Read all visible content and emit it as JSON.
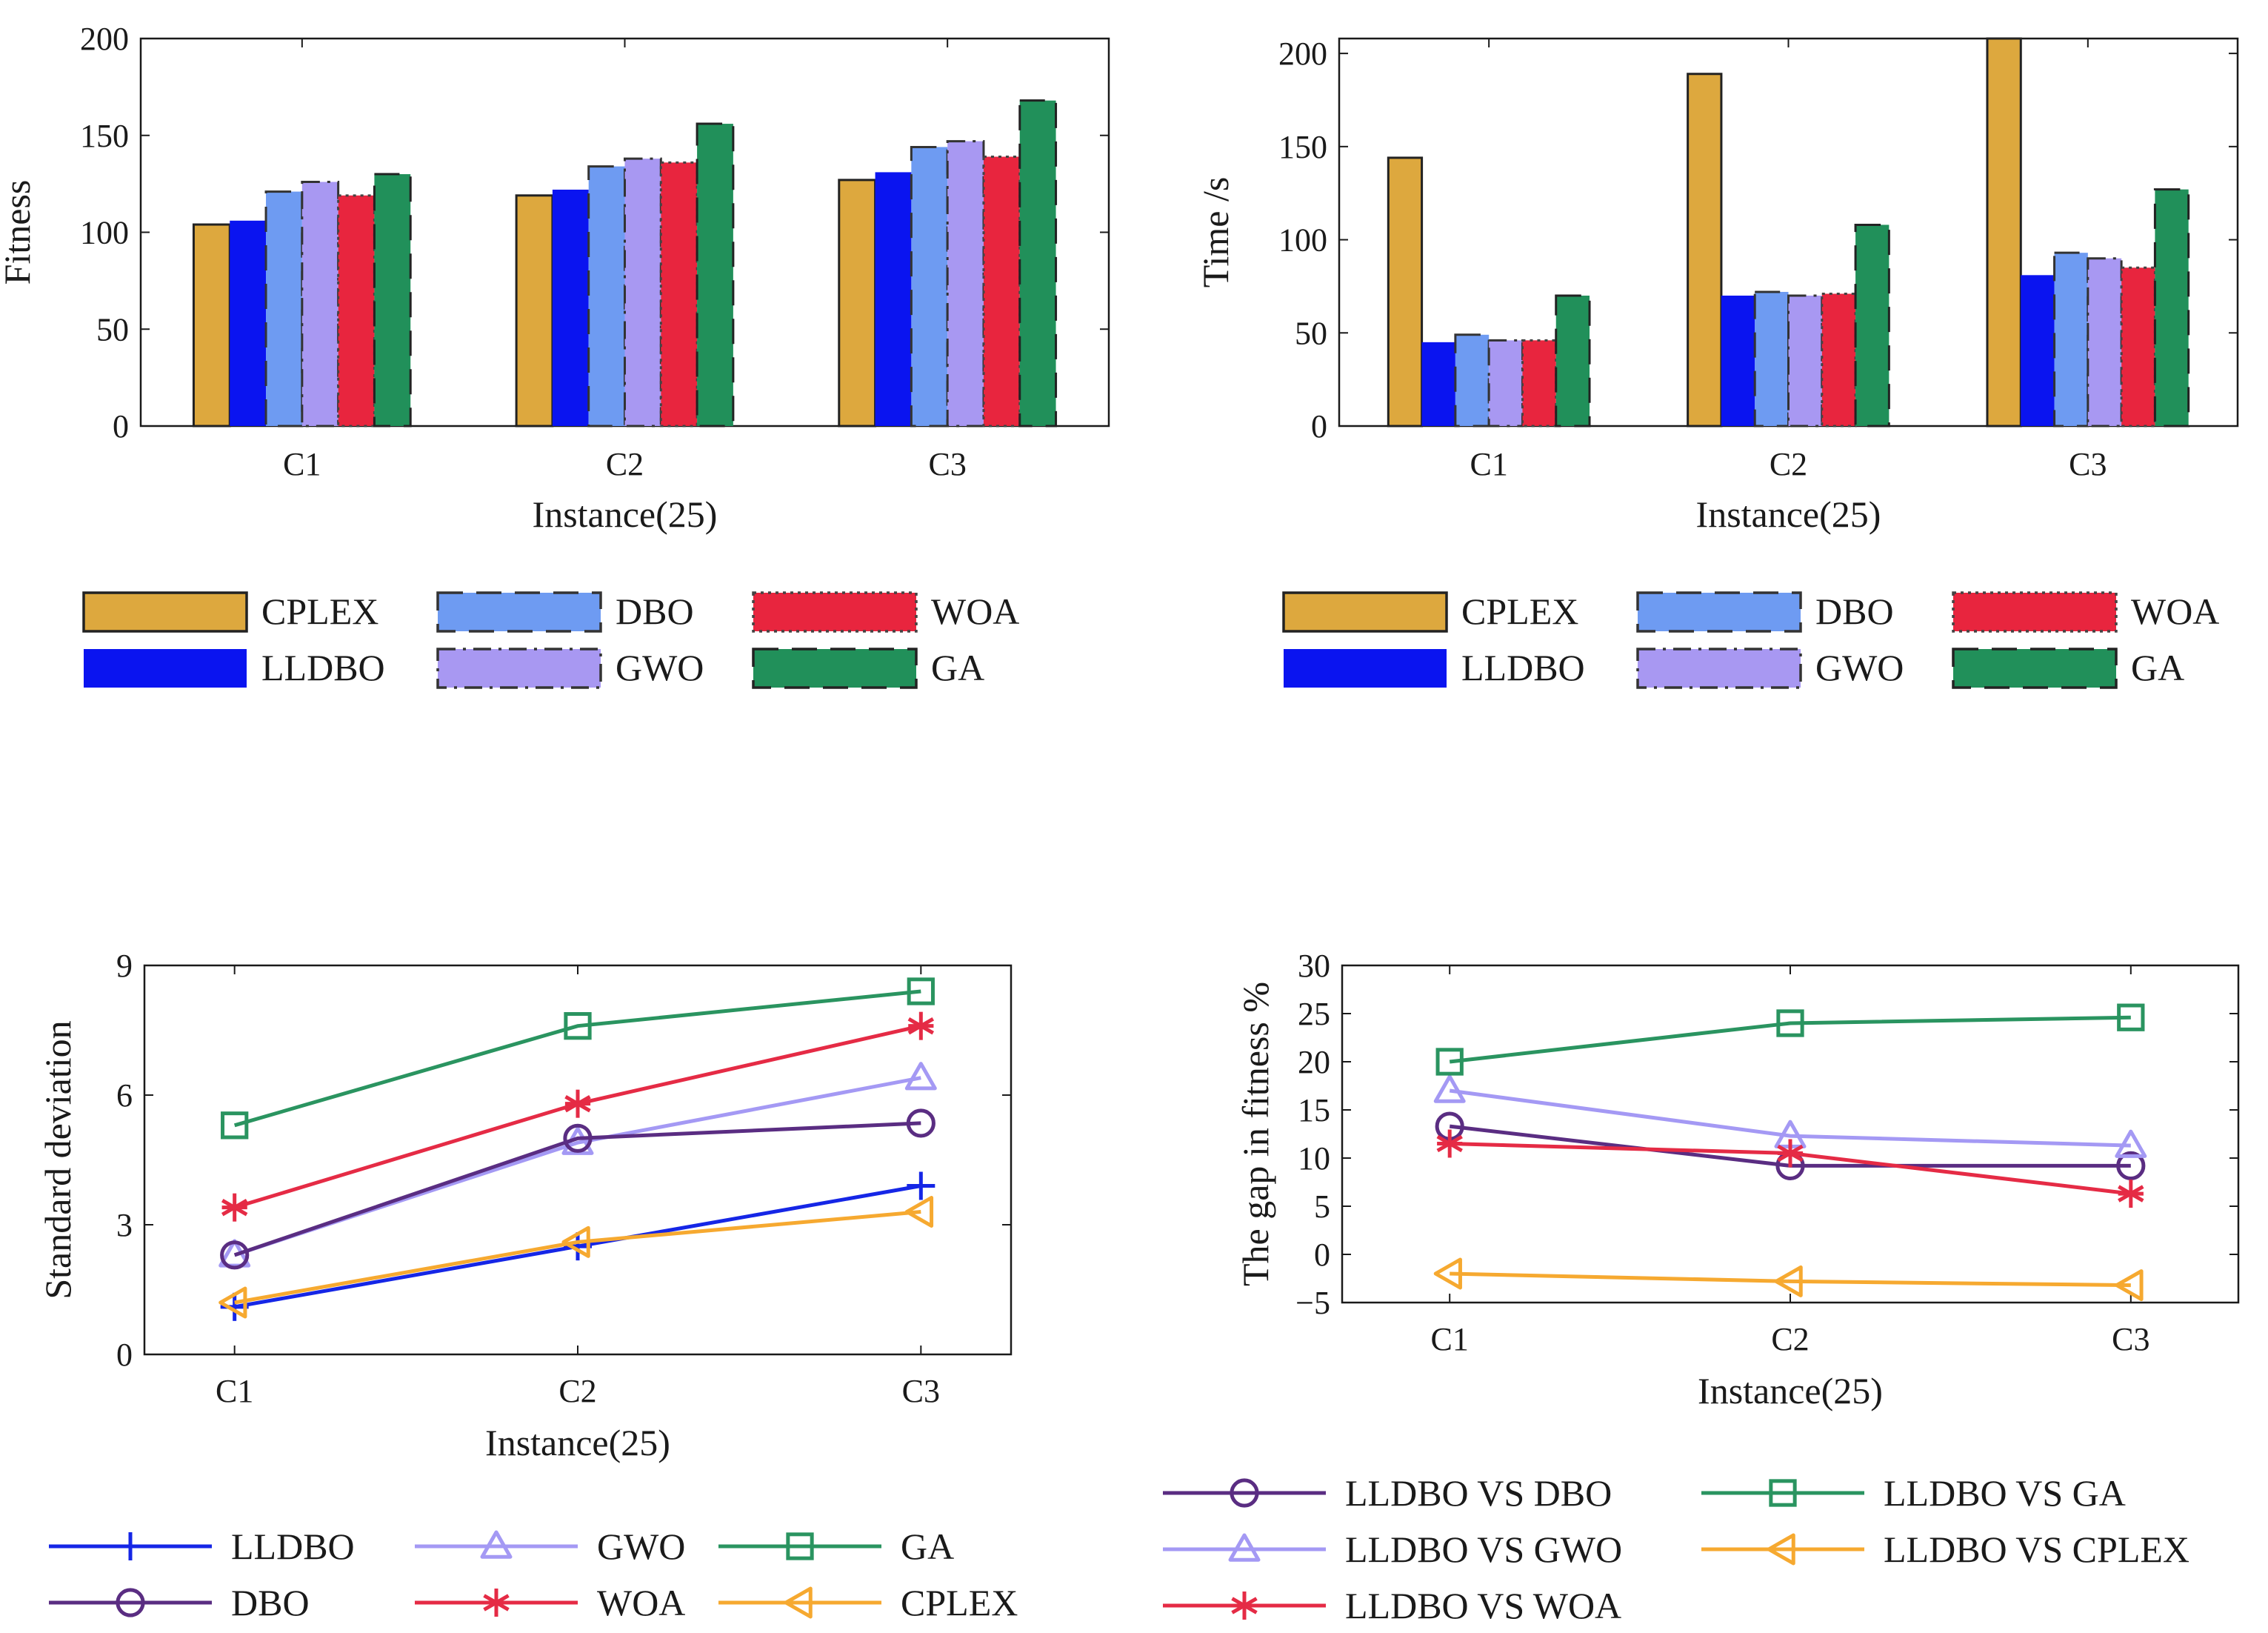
{
  "colors": {
    "CPLEX": "#DDA83E",
    "LLDBO": "#0A14F0",
    "DBO": "#6E9BF2",
    "GWO": "#A898F2",
    "WOA": "#E8253E",
    "GA": "#21905A",
    "line_LLDBO": "#1526E6",
    "line_DBO": "#5A2D82",
    "line_GWO": "#A499F4",
    "line_WOA": "#E52B45",
    "line_GA": "#2A9460",
    "line_CPLEX": "#F6A930"
  },
  "chart_data": [
    {
      "type": "bar",
      "id": "fitness",
      "ylabel": "Fitness",
      "xlabel": "Instance(25)",
      "ylim": [
        0,
        200
      ],
      "yticks": [
        "0",
        "50",
        "100",
        "150",
        "200"
      ],
      "categories": [
        "C1",
        "C2",
        "C3"
      ],
      "series": [
        {
          "name": "CPLEX",
          "values": [
            104,
            119,
            127
          ]
        },
        {
          "name": "LLDBO",
          "values": [
            106,
            122,
            131
          ]
        },
        {
          "name": "DBO",
          "values": [
            121,
            134,
            144
          ]
        },
        {
          "name": "GWO",
          "values": [
            126,
            138,
            147
          ]
        },
        {
          "name": "WOA",
          "values": [
            119,
            136,
            139
          ]
        },
        {
          "name": "GA",
          "values": [
            130,
            156,
            168
          ]
        }
      ],
      "legend": [
        "CPLEX",
        "DBO",
        "WOA",
        "LLDBO",
        "GWO",
        "GA"
      ]
    },
    {
      "type": "bar",
      "id": "time",
      "ylabel": "Time /s",
      "xlabel": "Instance(25)",
      "ylim": [
        0,
        208
      ],
      "yticks": [
        "0",
        "50",
        "100",
        "150",
        "200"
      ],
      "categories": [
        "C1",
        "C2",
        "C3"
      ],
      "series": [
        {
          "name": "CPLEX",
          "values": [
            144,
            189,
            208
          ]
        },
        {
          "name": "LLDBO",
          "values": [
            45,
            70,
            81
          ]
        },
        {
          "name": "DBO",
          "values": [
            49,
            72,
            93
          ]
        },
        {
          "name": "GWO",
          "values": [
            46,
            70,
            90
          ]
        },
        {
          "name": "WOA",
          "values": [
            46,
            71,
            85
          ]
        },
        {
          "name": "GA",
          "values": [
            70,
            108,
            127
          ]
        }
      ],
      "legend": [
        "CPLEX",
        "DBO",
        "WOA",
        "LLDBO",
        "GWO",
        "GA"
      ]
    },
    {
      "type": "line",
      "id": "stddev",
      "ylabel": "Standard deviation",
      "xlabel": "Instance(25)",
      "ylim": [
        0,
        9
      ],
      "yticks": [
        "0",
        "3",
        "6",
        "9"
      ],
      "categories": [
        "C1",
        "C2",
        "C3"
      ],
      "series": [
        {
          "name": "LLDBO",
          "marker": "plus",
          "values": [
            1.1,
            2.5,
            3.9
          ]
        },
        {
          "name": "GWO",
          "marker": "triangle-up",
          "values": [
            2.3,
            4.9,
            6.4
          ]
        },
        {
          "name": "GA",
          "marker": "square",
          "values": [
            5.3,
            7.6,
            8.4
          ]
        },
        {
          "name": "DBO",
          "marker": "circle",
          "values": [
            2.3,
            5.0,
            5.35
          ]
        },
        {
          "name": "WOA",
          "marker": "asterisk",
          "values": [
            3.4,
            5.8,
            7.6
          ]
        },
        {
          "name": "CPLEX",
          "marker": "triangle-left",
          "values": [
            1.2,
            2.6,
            3.3
          ]
        }
      ],
      "legend": [
        "LLDBO",
        "GWO",
        "GA",
        "DBO",
        "WOA",
        "CPLEX"
      ]
    },
    {
      "type": "line",
      "id": "gap",
      "ylabel": "The gap in fitness %",
      "xlabel": "Instance(25)",
      "ylim": [
        -5,
        30
      ],
      "yticks": [
        "−5",
        "0",
        "5",
        "10",
        "15",
        "20",
        "25",
        "30"
      ],
      "categories": [
        "C1",
        "C2",
        "C3"
      ],
      "series": [
        {
          "name": "LLDBO VS DBO",
          "color_key": "line_DBO",
          "marker": "circle",
          "values": [
            13.3,
            9.2,
            9.2
          ]
        },
        {
          "name": "LLDBO VS GWO",
          "color_key": "line_GWO",
          "marker": "triangle-up",
          "values": [
            17.0,
            12.3,
            11.3
          ]
        },
        {
          "name": "LLDBO VS WOA",
          "color_key": "line_WOA",
          "marker": "asterisk",
          "values": [
            11.5,
            10.5,
            6.3
          ]
        },
        {
          "name": "LLDBO VS GA",
          "color_key": "line_GA",
          "marker": "square",
          "values": [
            20.0,
            24.0,
            24.6
          ]
        },
        {
          "name": "LLDBO VS CPLEX",
          "color_key": "line_CPLEX",
          "marker": "triangle-left",
          "values": [
            -2.0,
            -2.8,
            -3.2
          ]
        }
      ],
      "legend": [
        "LLDBO VS DBO",
        "LLDBO VS GA",
        "LLDBO VS GWO",
        "LLDBO VS CPLEX",
        "LLDBO VS WOA"
      ]
    }
  ]
}
